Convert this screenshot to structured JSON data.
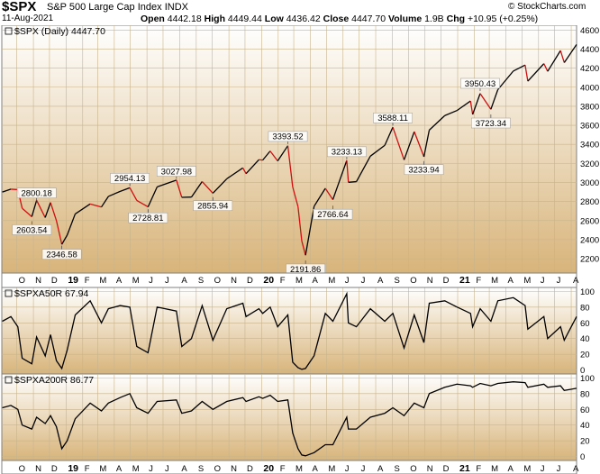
{
  "header": {
    "symbol": "$SPX",
    "name": "S&P 500 Large Cap Index",
    "exchange": "INDX",
    "date": "11-Aug-2021",
    "brand": "© StockCharts.com",
    "quote": [
      {
        "label": "Open",
        "value": "4442.18"
      },
      {
        "label": "High",
        "value": "4449.44"
      },
      {
        "label": "Low",
        "value": "4436.42"
      },
      {
        "label": "Close",
        "value": "4447.70"
      },
      {
        "label": "Volume",
        "value": "1.9B"
      },
      {
        "label": "Chg",
        "value": "+10.95 (+0.25%)"
      }
    ]
  },
  "colors": {
    "panel_top": "#ffffff",
    "panel_bottom": "#d8b47a",
    "up": "#000000",
    "down": "#cc1111",
    "grid": "#c8b48c"
  },
  "chart_data": [
    {
      "type": "line",
      "panel": "price",
      "legend": "$SPX (Daily) 4447.70",
      "ylim": [
        2050,
        4650
      ],
      "yticks": [
        2200,
        2400,
        2600,
        2800,
        3000,
        3200,
        3400,
        3600,
        3800,
        4000,
        4200,
        4400,
        4600
      ],
      "x_tick_labels": [
        "O",
        "N",
        "D",
        "19",
        "F",
        "M",
        "A",
        "M",
        "J",
        "J",
        "A",
        "S",
        "O",
        "N",
        "D",
        "20",
        "F",
        "M",
        "A",
        "M",
        "J",
        "J",
        "A",
        "S",
        "O",
        "N",
        "D",
        "21",
        "F",
        "M",
        "A",
        "M",
        "J",
        "J",
        "A"
      ],
      "x_date_start": "2018-09-03",
      "x_date_end": "2021-08-11",
      "series": [
        {
          "points": [
            [
              "2018-09-04",
              2900
            ],
            [
              "2018-09-20",
              2930
            ],
            [
              "2018-10-03",
              2925
            ],
            [
              "2018-10-11",
              2730
            ],
            [
              "2018-10-29",
              2641
            ],
            [
              "2018-11-07",
              2813
            ],
            [
              "2018-11-23",
              2632
            ],
            [
              "2018-12-03",
              2790
            ],
            [
              "2018-12-14",
              2599
            ],
            [
              "2018-12-24",
              2351
            ],
            [
              "2019-01-03",
              2447
            ],
            [
              "2019-01-18",
              2670
            ],
            [
              "2019-02-15",
              2775
            ],
            [
              "2019-03-08",
              2743
            ],
            [
              "2019-03-21",
              2854
            ],
            [
              "2019-04-12",
              2907
            ],
            [
              "2019-04-30",
              2945
            ],
            [
              "2019-05-13",
              2812
            ],
            [
              "2019-06-03",
              2744
            ],
            [
              "2019-06-20",
              2954
            ],
            [
              "2019-07-26",
              3025
            ],
            [
              "2019-08-05",
              2844
            ],
            [
              "2019-08-23",
              2847
            ],
            [
              "2019-09-12",
              3010
            ],
            [
              "2019-10-02",
              2887
            ],
            [
              "2019-10-28",
              3039
            ],
            [
              "2019-11-27",
              3153
            ],
            [
              "2019-12-03",
              3093
            ],
            [
              "2019-12-27",
              3240
            ],
            [
              "2020-01-03",
              3234
            ],
            [
              "2020-01-17",
              3330
            ],
            [
              "2020-01-31",
              3226
            ],
            [
              "2020-02-19",
              3386
            ],
            [
              "2020-02-28",
              2954
            ],
            [
              "2020-03-09",
              2746
            ],
            [
              "2020-03-16",
              2386
            ],
            [
              "2020-03-23",
              2237
            ],
            [
              "2020-04-08",
              2750
            ],
            [
              "2020-04-29",
              2939
            ],
            [
              "2020-05-13",
              2820
            ],
            [
              "2020-06-08",
              3232
            ],
            [
              "2020-06-11",
              3002
            ],
            [
              "2020-06-26",
              3009
            ],
            [
              "2020-07-22",
              3276
            ],
            [
              "2020-08-18",
              3390
            ],
            [
              "2020-09-02",
              3580
            ],
            [
              "2020-09-23",
              3237
            ],
            [
              "2020-10-12",
              3534
            ],
            [
              "2020-10-30",
              3270
            ],
            [
              "2020-11-09",
              3550
            ],
            [
              "2020-12-08",
              3702
            ],
            [
              "2020-12-31",
              3756
            ],
            [
              "2021-01-25",
              3855
            ],
            [
              "2021-01-29",
              3714
            ],
            [
              "2021-02-12",
              3934
            ],
            [
              "2021-03-04",
              3768
            ],
            [
              "2021-03-17",
              3974
            ],
            [
              "2021-04-15",
              4170
            ],
            [
              "2021-05-07",
              4232
            ],
            [
              "2021-05-12",
              4063
            ],
            [
              "2021-06-11",
              4247
            ],
            [
              "2021-06-18",
              4166
            ],
            [
              "2021-07-12",
              4384
            ],
            [
              "2021-07-19",
              4258
            ],
            [
              "2021-08-11",
              4447.7
            ]
          ]
        }
      ],
      "annotations": [
        {
          "text": "2800.18",
          "date": "2018-11-07",
          "value": 2800.18,
          "pos": "above"
        },
        {
          "text": "2603.54",
          "date": "2018-10-29",
          "value": 2603.54,
          "pos": "below"
        },
        {
          "text": "2346.58",
          "date": "2018-12-24",
          "value": 2346.58,
          "pos": "below"
        },
        {
          "text": "2954.13",
          "date": "2019-04-30",
          "value": 2954.13,
          "pos": "above"
        },
        {
          "text": "2728.81",
          "date": "2019-06-03",
          "value": 2728.81,
          "pos": "below"
        },
        {
          "text": "3027.98",
          "date": "2019-07-26",
          "value": 3027.98,
          "pos": "above"
        },
        {
          "text": "2855.94",
          "date": "2019-10-02",
          "value": 2855.94,
          "pos": "below"
        },
        {
          "text": "3393.52",
          "date": "2020-02-19",
          "value": 3393.52,
          "pos": "above"
        },
        {
          "text": "2191.86",
          "date": "2020-03-23",
          "value": 2191.86,
          "pos": "below"
        },
        {
          "text": "2766.64",
          "date": "2020-05-13",
          "value": 2766.64,
          "pos": "below"
        },
        {
          "text": "3233.13",
          "date": "2020-06-08",
          "value": 3233.13,
          "pos": "above"
        },
        {
          "text": "3588.11",
          "date": "2020-09-02",
          "value": 3588.11,
          "pos": "above"
        },
        {
          "text": "3233.94",
          "date": "2020-10-30",
          "value": 3233.94,
          "pos": "below"
        },
        {
          "text": "3950.43",
          "date": "2021-02-12",
          "value": 3950.43,
          "pos": "above"
        },
        {
          "text": "3723.34",
          "date": "2021-03-04",
          "value": 3723.34,
          "pos": "below"
        }
      ]
    },
    {
      "type": "line",
      "panel": "indicator",
      "legend": "$SPXA50R 67.94",
      "ylim": [
        -5,
        105
      ],
      "yticks": [
        0,
        20,
        40,
        60,
        80,
        100
      ],
      "series": [
        {
          "points": [
            [
              "2018-09-04",
              62
            ],
            [
              "2018-09-20",
              68
            ],
            [
              "2018-10-03",
              55
            ],
            [
              "2018-10-11",
              15
            ],
            [
              "2018-10-29",
              8
            ],
            [
              "2018-11-07",
              42
            ],
            [
              "2018-11-23",
              18
            ],
            [
              "2018-12-03",
              45
            ],
            [
              "2018-12-14",
              12
            ],
            [
              "2018-12-24",
              2
            ],
            [
              "2019-01-03",
              25
            ],
            [
              "2019-01-18",
              70
            ],
            [
              "2019-02-15",
              88
            ],
            [
              "2019-03-08",
              60
            ],
            [
              "2019-03-21",
              78
            ],
            [
              "2019-04-12",
              82
            ],
            [
              "2019-04-30",
              80
            ],
            [
              "2019-05-13",
              30
            ],
            [
              "2019-06-03",
              22
            ],
            [
              "2019-06-20",
              80
            ],
            [
              "2019-07-26",
              75
            ],
            [
              "2019-08-05",
              30
            ],
            [
              "2019-08-23",
              40
            ],
            [
              "2019-09-12",
              82
            ],
            [
              "2019-10-02",
              38
            ],
            [
              "2019-10-28",
              78
            ],
            [
              "2019-11-27",
              85
            ],
            [
              "2019-12-03",
              68
            ],
            [
              "2019-12-27",
              78
            ],
            [
              "2020-01-03",
              72
            ],
            [
              "2020-01-17",
              80
            ],
            [
              "2020-01-31",
              55
            ],
            [
              "2020-02-19",
              70
            ],
            [
              "2020-02-28",
              10
            ],
            [
              "2020-03-09",
              3
            ],
            [
              "2020-03-16",
              1
            ],
            [
              "2020-03-23",
              2
            ],
            [
              "2020-04-08",
              18
            ],
            [
              "2020-04-29",
              72
            ],
            [
              "2020-05-13",
              62
            ],
            [
              "2020-06-08",
              97
            ],
            [
              "2020-06-11",
              60
            ],
            [
              "2020-06-26",
              55
            ],
            [
              "2020-07-22",
              78
            ],
            [
              "2020-08-18",
              62
            ],
            [
              "2020-09-02",
              72
            ],
            [
              "2020-09-23",
              28
            ],
            [
              "2020-10-12",
              70
            ],
            [
              "2020-10-30",
              35
            ],
            [
              "2020-11-09",
              85
            ],
            [
              "2020-12-08",
              88
            ],
            [
              "2020-12-31",
              80
            ],
            [
              "2021-01-25",
              72
            ],
            [
              "2021-01-29",
              55
            ],
            [
              "2021-02-12",
              78
            ],
            [
              "2021-03-04",
              62
            ],
            [
              "2021-03-17",
              88
            ],
            [
              "2021-04-15",
              92
            ],
            [
              "2021-05-07",
              82
            ],
            [
              "2021-05-12",
              52
            ],
            [
              "2021-06-11",
              68
            ],
            [
              "2021-06-18",
              40
            ],
            [
              "2021-07-12",
              55
            ],
            [
              "2021-07-19",
              38
            ],
            [
              "2021-08-11",
              67.94
            ]
          ]
        }
      ]
    },
    {
      "type": "line",
      "panel": "indicator",
      "legend": "$SPXA200R 86.77",
      "ylim": [
        -5,
        105
      ],
      "yticks": [
        0,
        20,
        40,
        60,
        80,
        100
      ],
      "series": [
        {
          "points": [
            [
              "2018-09-04",
              62
            ],
            [
              "2018-09-20",
              65
            ],
            [
              "2018-10-03",
              60
            ],
            [
              "2018-10-11",
              40
            ],
            [
              "2018-10-29",
              35
            ],
            [
              "2018-11-07",
              50
            ],
            [
              "2018-11-23",
              42
            ],
            [
              "2018-12-03",
              52
            ],
            [
              "2018-12-14",
              38
            ],
            [
              "2018-12-24",
              10
            ],
            [
              "2019-01-03",
              20
            ],
            [
              "2019-01-18",
              48
            ],
            [
              "2019-02-15",
              68
            ],
            [
              "2019-03-08",
              58
            ],
            [
              "2019-03-21",
              68
            ],
            [
              "2019-04-12",
              75
            ],
            [
              "2019-04-30",
              80
            ],
            [
              "2019-05-13",
              62
            ],
            [
              "2019-06-03",
              55
            ],
            [
              "2019-06-20",
              70
            ],
            [
              "2019-07-26",
              72
            ],
            [
              "2019-08-05",
              55
            ],
            [
              "2019-08-23",
              58
            ],
            [
              "2019-09-12",
              70
            ],
            [
              "2019-10-02",
              60
            ],
            [
              "2019-10-28",
              70
            ],
            [
              "2019-11-27",
              75
            ],
            [
              "2019-12-03",
              70
            ],
            [
              "2019-12-27",
              76
            ],
            [
              "2020-01-03",
              74
            ],
            [
              "2020-01-17",
              78
            ],
            [
              "2020-01-31",
              70
            ],
            [
              "2020-02-19",
              72
            ],
            [
              "2020-02-28",
              30
            ],
            [
              "2020-03-09",
              10
            ],
            [
              "2020-03-16",
              2
            ],
            [
              "2020-03-23",
              1
            ],
            [
              "2020-04-08",
              5
            ],
            [
              "2020-04-29",
              15
            ],
            [
              "2020-05-13",
              15
            ],
            [
              "2020-06-08",
              50
            ],
            [
              "2020-06-11",
              35
            ],
            [
              "2020-06-26",
              35
            ],
            [
              "2020-07-22",
              50
            ],
            [
              "2020-08-18",
              55
            ],
            [
              "2020-09-02",
              62
            ],
            [
              "2020-09-23",
              52
            ],
            [
              "2020-10-12",
              68
            ],
            [
              "2020-10-30",
              62
            ],
            [
              "2020-11-09",
              80
            ],
            [
              "2020-12-08",
              88
            ],
            [
              "2020-12-31",
              92
            ],
            [
              "2021-01-25",
              90
            ],
            [
              "2021-01-29",
              88
            ],
            [
              "2021-02-12",
              93
            ],
            [
              "2021-03-04",
              90
            ],
            [
              "2021-03-17",
              93
            ],
            [
              "2021-04-15",
              95
            ],
            [
              "2021-05-07",
              94
            ],
            [
              "2021-05-12",
              88
            ],
            [
              "2021-06-11",
              92
            ],
            [
              "2021-06-18",
              88
            ],
            [
              "2021-07-12",
              90
            ],
            [
              "2021-07-19",
              84
            ],
            [
              "2021-08-11",
              86.77
            ]
          ]
        }
      ]
    }
  ]
}
